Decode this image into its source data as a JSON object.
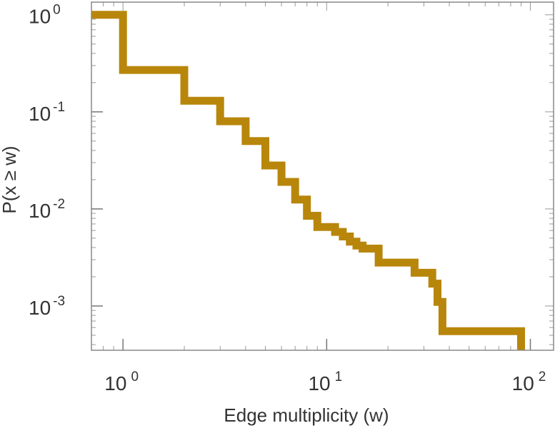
{
  "chart_data": {
    "type": "line",
    "step": true,
    "title": "",
    "xlabel": "Edge multiplicity (w)",
    "ylabel": "P(x ≥ w)",
    "xscale": "log",
    "yscale": "log",
    "xlim": [
      0.7,
      130
    ],
    "ylim": [
      0.00035,
      1.35
    ],
    "grid": false,
    "legend": "none",
    "line_color": "#B8860B",
    "x_ticks": [
      {
        "value": 1,
        "base": "10",
        "exp": "0"
      },
      {
        "value": 10,
        "base": "10",
        "exp": "1"
      },
      {
        "value": 100,
        "base": "10",
        "exp": "2"
      }
    ],
    "y_ticks": [
      {
        "value": 1,
        "base": "10",
        "exp": "0"
      },
      {
        "value": 0.1,
        "base": "10",
        "exp": "-1"
      },
      {
        "value": 0.01,
        "base": "10",
        "exp": "-2"
      },
      {
        "value": 0.001,
        "base": "10",
        "exp": "-3"
      }
    ],
    "series": [
      {
        "x": [
          0.7,
          1,
          2,
          3,
          4,
          5,
          6,
          7,
          8,
          9,
          11,
          12,
          13,
          14,
          15,
          18,
          27,
          33,
          35,
          37,
          90
        ],
        "y": [
          1.0,
          0.27,
          0.13,
          0.08,
          0.05,
          0.028,
          0.019,
          0.0125,
          0.0085,
          0.0065,
          0.0058,
          0.0052,
          0.0046,
          0.0042,
          0.0039,
          0.0028,
          0.0022,
          0.0017,
          0.0011,
          0.00055,
          0.00035
        ]
      }
    ]
  }
}
